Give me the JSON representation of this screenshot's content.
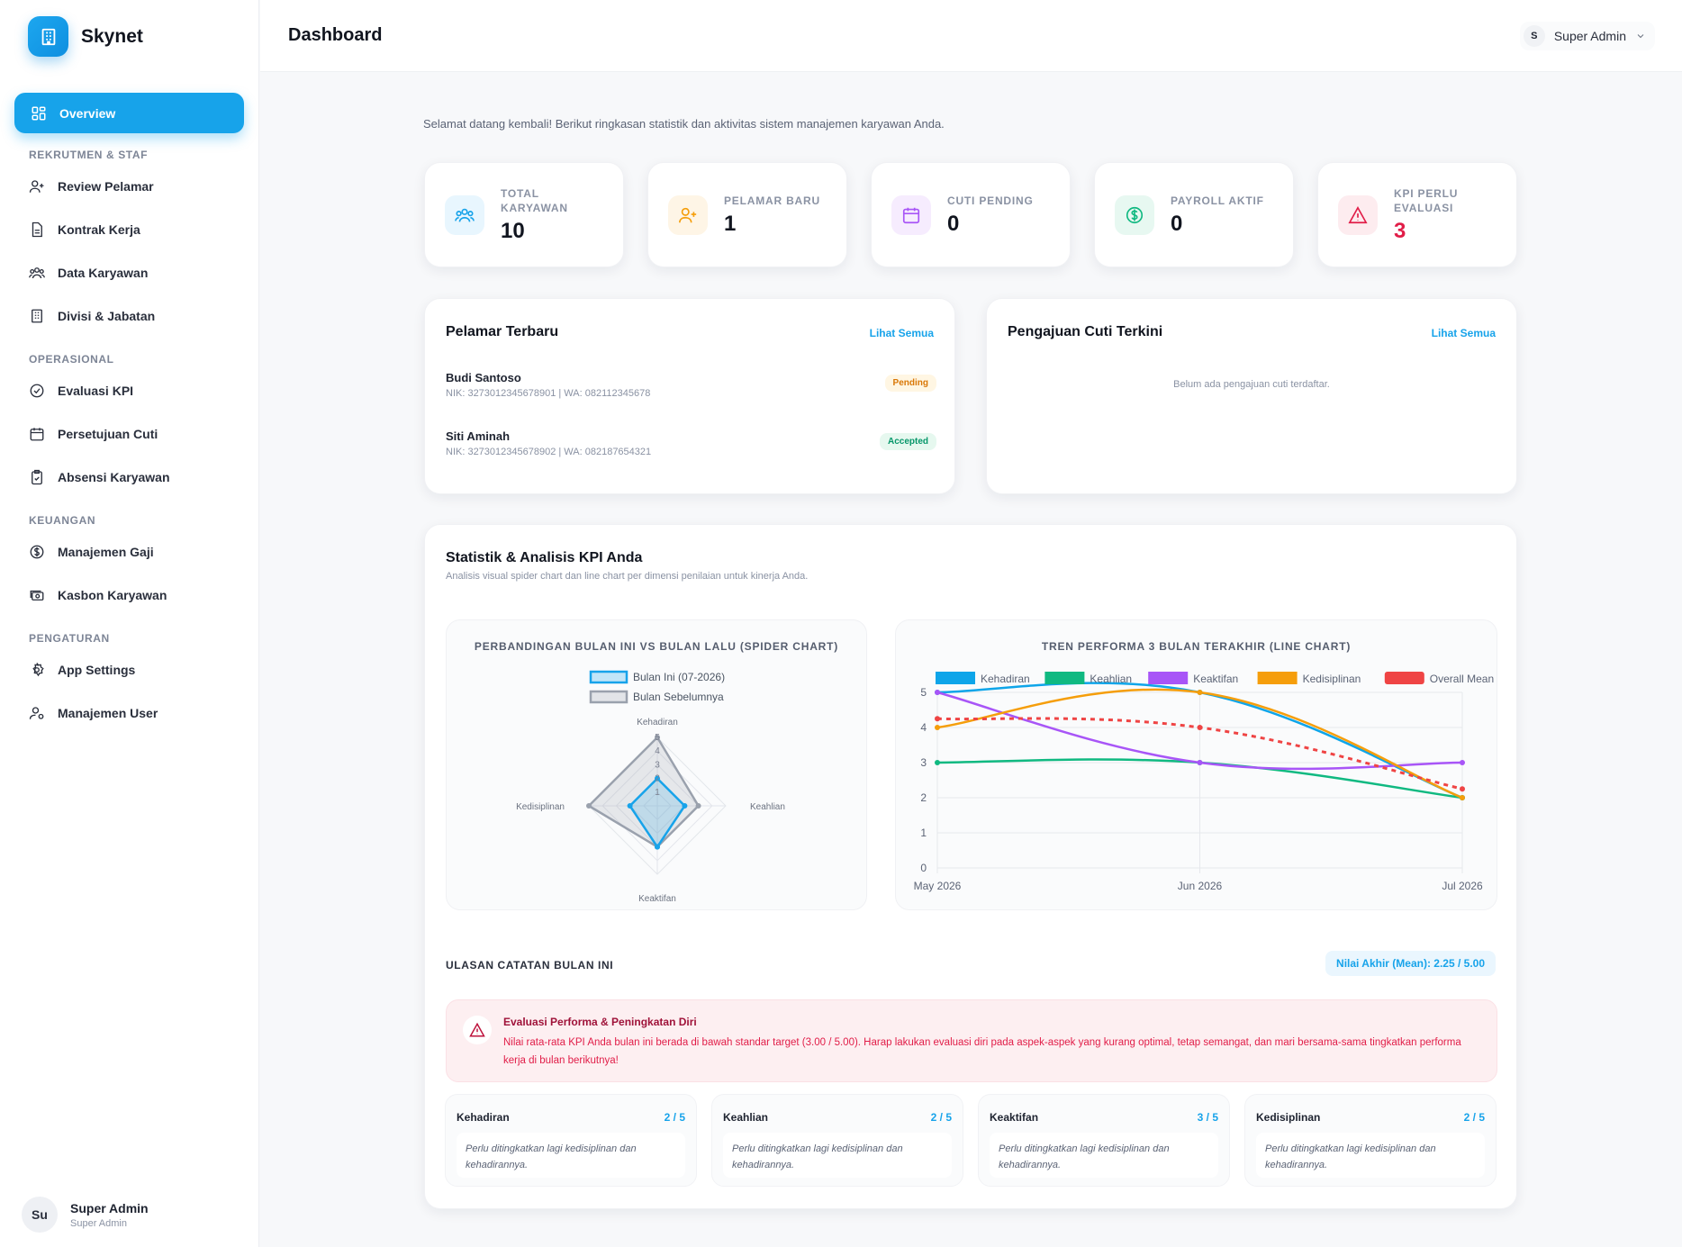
{
  "brand": {
    "name": "Skynet"
  },
  "sidebar": {
    "active": "Overview",
    "sections": [
      {
        "title": "REKRUTMEN & STAF",
        "items": [
          "Review Pelamar",
          "Kontrak Kerja",
          "Data Karyawan",
          "Divisi & Jabatan"
        ]
      },
      {
        "title": "OPERASIONAL",
        "items": [
          "Evaluasi KPI",
          "Persetujuan Cuti",
          "Absensi Karyawan"
        ]
      },
      {
        "title": "KEUANGAN",
        "items": [
          "Manajemen Gaji",
          "Kasbon Karyawan"
        ]
      },
      {
        "title": "PENGATURAN",
        "items": [
          "App Settings",
          "Manajemen User"
        ]
      }
    ],
    "user": {
      "initials": "Su",
      "name": "Super Admin",
      "role": "Super Admin"
    }
  },
  "header": {
    "title": "Dashboard",
    "user_initial": "S",
    "user_name": "Super Admin"
  },
  "welcome": "Selamat datang kembali! Berikut ringkasan statistik dan aktivitas sistem manajemen karyawan Anda.",
  "stats": [
    {
      "label": "TOTAL KARYAWAN",
      "value": "10",
      "color": "#17a3ea",
      "icon": "users-icon"
    },
    {
      "label": "PELAMAR BARU",
      "value": "1",
      "color": "#f59e0b",
      "icon": "user-plus-icon"
    },
    {
      "label": "CUTI PENDING",
      "value": "0",
      "color": "#a855f7",
      "icon": "calendar-icon"
    },
    {
      "label": "PAYROLL AKTIF",
      "value": "0",
      "color": "#10b981",
      "icon": "dollar-icon"
    },
    {
      "label": "KPI PERLU EVALUASI",
      "value": "3",
      "color": "#e11d48",
      "icon": "warning-icon"
    }
  ],
  "applicants": {
    "title": "Pelamar Terbaru",
    "link": "Lihat Semua",
    "rows": [
      {
        "name": "Budi Santoso",
        "meta": "NIK: 3273012345678901 | WA: 082112345678",
        "status": "Pending"
      },
      {
        "name": "Siti Aminah",
        "meta": "NIK: 3273012345678902 | WA: 082187654321",
        "status": "Accepted"
      }
    ]
  },
  "leave": {
    "title": "Pengajuan Cuti Terkini",
    "link": "Lihat Semua",
    "empty": "Belum ada pengajuan cuti terdaftar."
  },
  "kpi": {
    "title": "Statistik & Analisis KPI Anda",
    "subtitle": "Analisis visual spider chart dan line chart per dimensi penilaian untuk kinerja Anda.",
    "review_title": "ULASAN CATATAN BULAN INI",
    "mean_badge": "Nilai Akhir (Mean): 2.25 / 5.00",
    "alert_title": "Evaluasi Performa & Peningkatan Diri",
    "alert_text": "Nilai rata-rata KPI Anda bulan ini berada di bawah standar target (3.00 / 5.00). Harap lakukan evaluasi diri pada aspek-aspek yang kurang optimal, tetap semangat, dan mari bersama-sama tingkatkan performa kerja di bulan berikutnya!",
    "tiles": [
      {
        "name": "Kehadiran",
        "score": "2 / 5",
        "note": "Perlu ditingkatkan lagi kedisiplinan dan kehadirannya."
      },
      {
        "name": "Keahlian",
        "score": "2 / 5",
        "note": "Perlu ditingkatkan lagi kedisiplinan dan kehadirannya."
      },
      {
        "name": "Keaktifan",
        "score": "3 / 5",
        "note": "Perlu ditingkatkan lagi kedisiplinan dan kehadirannya."
      },
      {
        "name": "Kedisiplinan",
        "score": "2 / 5",
        "note": "Perlu ditingkatkan lagi kedisiplinan dan kehadirannya."
      }
    ]
  },
  "chart_data": [
    {
      "type": "radar",
      "title": "PERBANDINGAN BULAN INI VS BULAN LALU (SPIDER CHART)",
      "axes": [
        "Kehadiran",
        "Keahlian",
        "Keaktifan",
        "Kedisiplinan"
      ],
      "ticks": [
        "1",
        "2",
        "3",
        "4",
        "5"
      ],
      "rmax": 5,
      "series": [
        {
          "name": "Bulan Ini (07-2026)",
          "values": [
            2,
            2,
            3,
            2
          ],
          "color": "#17a3ea"
        },
        {
          "name": "Bulan Sebelumnya",
          "values": [
            5,
            3,
            3,
            5
          ],
          "color": "#9aa1ad"
        }
      ]
    },
    {
      "type": "line",
      "title": "TREN PERFORMA 3 BULAN TERAKHIR (LINE CHART)",
      "categories": [
        "May 2026",
        "Jun 2026",
        "Jul 2026"
      ],
      "yticks": [
        "0",
        "1",
        "2",
        "3",
        "4",
        "5"
      ],
      "ylim": [
        0,
        5
      ],
      "series": [
        {
          "name": "Kehadiran",
          "values": [
            5,
            5,
            2
          ],
          "color": "#0ea5e9"
        },
        {
          "name": "Keahlian",
          "values": [
            3,
            3,
            2
          ],
          "color": "#10b981"
        },
        {
          "name": "Keaktifan",
          "values": [
            5,
            3,
            3
          ],
          "color": "#a855f7"
        },
        {
          "name": "Kedisiplinan",
          "values": [
            4,
            5,
            2
          ],
          "color": "#f59e0b"
        },
        {
          "name": "Overall Mean",
          "values": [
            4.25,
            4,
            2.25
          ],
          "color": "#ef4444",
          "dashed": true
        }
      ]
    }
  ]
}
